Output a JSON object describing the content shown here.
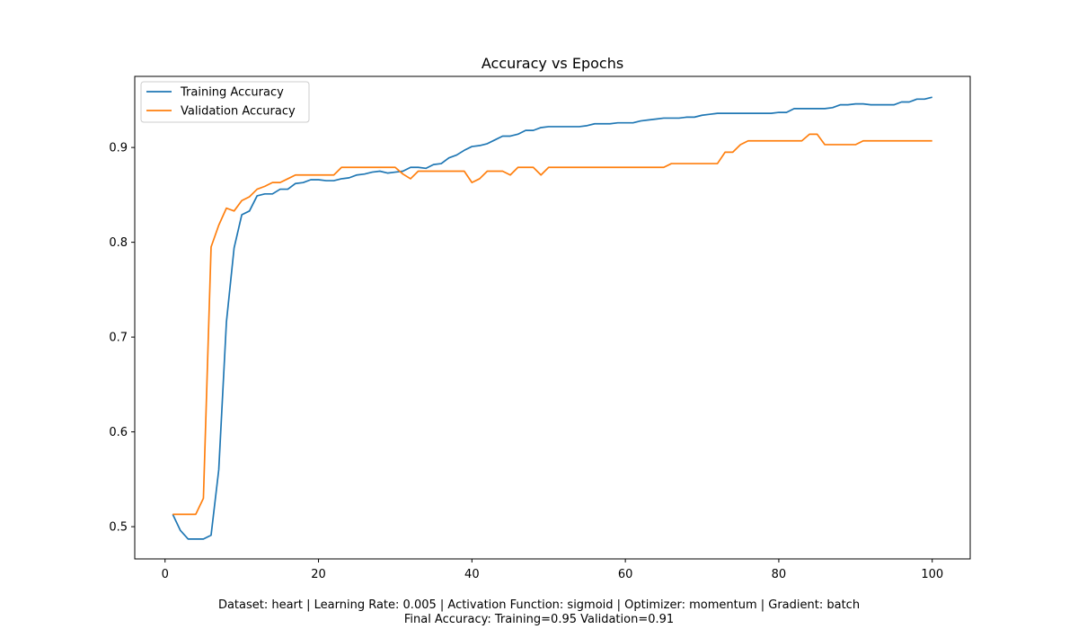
{
  "chart_data": {
    "type": "line",
    "title": "Accuracy vs Epochs",
    "xlabel": "",
    "ylabel": "",
    "xlim": [
      -3.95,
      104.95
    ],
    "ylim": [
      0.466,
      0.975
    ],
    "x_ticks": [
      0,
      20,
      40,
      60,
      80,
      100
    ],
    "y_ticks": [
      0.5,
      0.6,
      0.7,
      0.8,
      0.9
    ],
    "y_tick_labels": [
      "0.5",
      "0.6",
      "0.7",
      "0.8",
      "0.9"
    ],
    "grid": false,
    "legend_position": "top-left",
    "series": [
      {
        "name": "Training Accuracy",
        "color": "#1f77b4",
        "x": [
          1,
          2,
          3,
          4,
          5,
          6,
          7,
          8,
          9,
          10,
          11,
          12,
          13,
          14,
          15,
          16,
          17,
          18,
          19,
          20,
          21,
          22,
          23,
          24,
          25,
          26,
          27,
          28,
          29,
          30,
          31,
          32,
          33,
          34,
          35,
          36,
          37,
          38,
          39,
          40,
          41,
          42,
          43,
          44,
          45,
          46,
          47,
          48,
          49,
          50,
          51,
          52,
          53,
          54,
          55,
          56,
          57,
          58,
          59,
          60,
          61,
          62,
          63,
          64,
          65,
          66,
          67,
          68,
          69,
          70,
          71,
          72,
          73,
          74,
          75,
          76,
          77,
          78,
          79,
          80,
          81,
          82,
          83,
          84,
          85,
          86,
          87,
          88,
          89,
          90,
          91,
          92,
          93,
          94,
          95,
          96,
          97,
          98,
          99,
          100
        ],
        "values": [
          0.513,
          0.496,
          0.487,
          0.487,
          0.487,
          0.491,
          0.56,
          0.716,
          0.794,
          0.829,
          0.833,
          0.849,
          0.851,
          0.851,
          0.856,
          0.856,
          0.862,
          0.863,
          0.866,
          0.866,
          0.865,
          0.865,
          0.867,
          0.868,
          0.871,
          0.872,
          0.874,
          0.875,
          0.873,
          0.874,
          0.875,
          0.879,
          0.879,
          0.878,
          0.882,
          0.883,
          0.889,
          0.892,
          0.897,
          0.901,
          0.902,
          0.904,
          0.908,
          0.912,
          0.912,
          0.914,
          0.918,
          0.918,
          0.921,
          0.922,
          0.922,
          0.922,
          0.922,
          0.922,
          0.923,
          0.925,
          0.925,
          0.925,
          0.926,
          0.926,
          0.926,
          0.928,
          0.929,
          0.93,
          0.931,
          0.931,
          0.931,
          0.932,
          0.932,
          0.934,
          0.935,
          0.936,
          0.936,
          0.936,
          0.936,
          0.936,
          0.936,
          0.936,
          0.936,
          0.937,
          0.937,
          0.941,
          0.941,
          0.941,
          0.941,
          0.941,
          0.942,
          0.945,
          0.945,
          0.946,
          0.946,
          0.945,
          0.945,
          0.945,
          0.945,
          0.948,
          0.948,
          0.951,
          0.951,
          0.953
        ]
      },
      {
        "name": "Validation Accuracy",
        "color": "#ff7f0e",
        "x": [
          1,
          2,
          3,
          4,
          5,
          6,
          7,
          8,
          9,
          10,
          11,
          12,
          13,
          14,
          15,
          16,
          17,
          18,
          19,
          20,
          21,
          22,
          23,
          24,
          25,
          26,
          27,
          28,
          29,
          30,
          31,
          32,
          33,
          34,
          35,
          36,
          37,
          38,
          39,
          40,
          41,
          42,
          43,
          44,
          45,
          46,
          47,
          48,
          49,
          50,
          51,
          52,
          53,
          54,
          55,
          56,
          57,
          58,
          59,
          60,
          61,
          62,
          63,
          64,
          65,
          66,
          67,
          68,
          69,
          70,
          71,
          72,
          73,
          74,
          75,
          76,
          77,
          78,
          79,
          80,
          81,
          82,
          83,
          84,
          85,
          86,
          87,
          88,
          89,
          90,
          91,
          92,
          93,
          94,
          95,
          96,
          97,
          98,
          99,
          100
        ],
        "values": [
          0.513,
          0.513,
          0.513,
          0.513,
          0.53,
          0.795,
          0.818,
          0.836,
          0.833,
          0.844,
          0.848,
          0.856,
          0.859,
          0.863,
          0.863,
          0.867,
          0.871,
          0.871,
          0.871,
          0.871,
          0.871,
          0.871,
          0.879,
          0.879,
          0.879,
          0.879,
          0.879,
          0.879,
          0.879,
          0.879,
          0.872,
          0.867,
          0.875,
          0.875,
          0.875,
          0.875,
          0.875,
          0.875,
          0.875,
          0.863,
          0.867,
          0.875,
          0.875,
          0.875,
          0.871,
          0.879,
          0.879,
          0.879,
          0.871,
          0.879,
          0.879,
          0.879,
          0.879,
          0.879,
          0.879,
          0.879,
          0.879,
          0.879,
          0.879,
          0.879,
          0.879,
          0.879,
          0.879,
          0.879,
          0.879,
          0.883,
          0.883,
          0.883,
          0.883,
          0.883,
          0.883,
          0.883,
          0.895,
          0.895,
          0.903,
          0.907,
          0.907,
          0.907,
          0.907,
          0.907,
          0.907,
          0.907,
          0.907,
          0.914,
          0.914,
          0.903,
          0.903,
          0.903,
          0.903,
          0.903,
          0.907,
          0.907,
          0.907,
          0.907,
          0.907,
          0.907,
          0.907,
          0.907,
          0.907,
          0.907
        ]
      }
    ]
  },
  "footer": {
    "line1": "Dataset: heart | Learning Rate: 0.005 | Activation Function: sigmoid | Optimizer: momentum | Gradient: batch",
    "line2": "Final Accuracy: Training=0.95 Validation=0.91"
  }
}
